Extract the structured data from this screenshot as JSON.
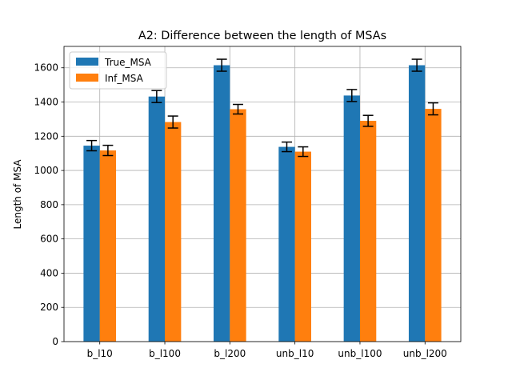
{
  "chart_data": {
    "type": "bar",
    "title": "A2: Difference between the length of MSAs",
    "xlabel": "",
    "ylabel": "Length of MSA",
    "categories": [
      "b_l10",
      "b_l100",
      "b_l200",
      "unb_l10",
      "unb_l100",
      "unb_l200"
    ],
    "series": [
      {
        "name": "True_MSA",
        "color": "#1f77b4",
        "values": [
          1145,
          1432,
          1615,
          1138,
          1438,
          1615
        ],
        "errors": [
          30,
          35,
          35,
          28,
          35,
          35
        ]
      },
      {
        "name": "Inf_MSA",
        "color": "#ff7f0e",
        "values": [
          1117,
          1283,
          1358,
          1110,
          1290,
          1360
        ],
        "errors": [
          30,
          35,
          28,
          28,
          32,
          35
        ]
      }
    ],
    "ylim": [
      0,
      1725
    ],
    "yticks": [
      0,
      200,
      400,
      600,
      800,
      1000,
      1200,
      1400,
      1600
    ],
    "grid": true,
    "legend_position": "top-left"
  }
}
